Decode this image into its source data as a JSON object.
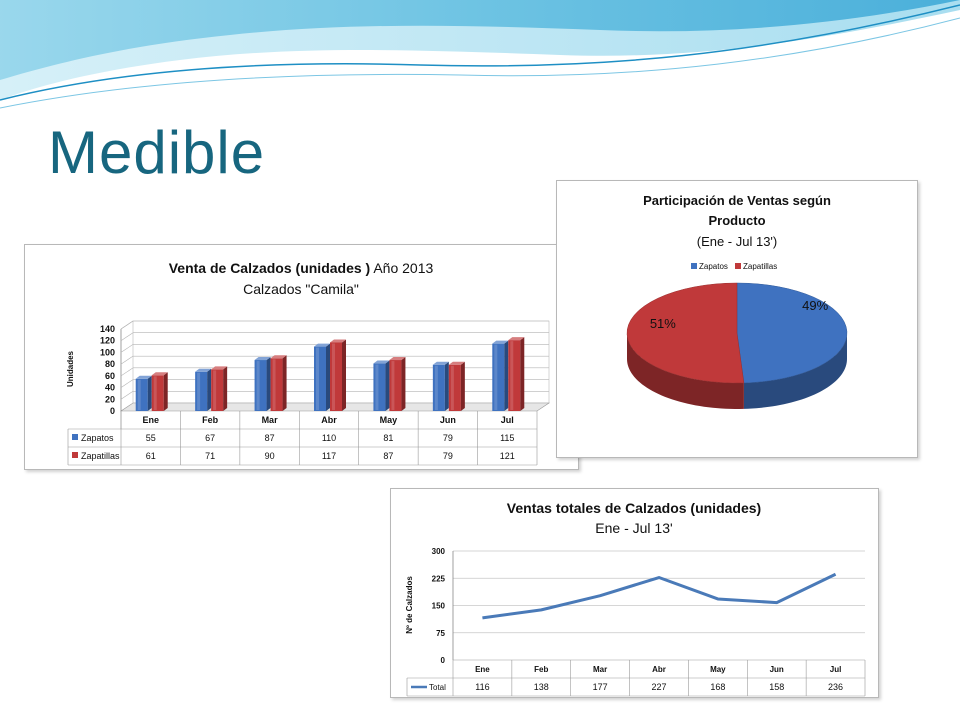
{
  "slide": {
    "title": "Medible"
  },
  "colors": {
    "title": "#17667f",
    "zapatos": "#3f72c0",
    "zapatillas": "#c0393a",
    "line": "#4a7ab8",
    "grid": "#c8c8c8"
  },
  "chart_data": [
    {
      "type": "bar",
      "title_bold": "Venta de Calzados  (unidades )",
      "title_rest": " Año 2013",
      "subtitle": "Calzados \"Camila\"",
      "ylabel": "Unidades",
      "xlabel": "",
      "ylim": [
        0,
        140
      ],
      "yticks": [
        0,
        20,
        40,
        60,
        80,
        100,
        120,
        140
      ],
      "categories": [
        "Ene",
        "Feb",
        "Mar",
        "Abr",
        "May",
        "Jun",
        "Jul"
      ],
      "series": [
        {
          "name": "Zapatos",
          "values": [
            55,
            67,
            87,
            110,
            81,
            79,
            115
          ],
          "color": "#3f72c0"
        },
        {
          "name": "Zapatillas",
          "values": [
            61,
            71,
            90,
            117,
            87,
            79,
            121
          ],
          "color": "#c0393a"
        }
      ],
      "grid": true,
      "legend": "data-table"
    },
    {
      "type": "pie",
      "title_line1": "Participación  de Ventas según",
      "title_line2": "Producto",
      "subtitle": "(Ene - Jul 13')",
      "slices": [
        {
          "name": "Zapatos",
          "value": 49,
          "label": "49%",
          "color": "#3f72c0"
        },
        {
          "name": "Zapatillas",
          "value": 51,
          "label": "51%",
          "color": "#c0393a"
        }
      ],
      "legend": "top"
    },
    {
      "type": "line",
      "title": "Ventas totales de Calzados (unidades)",
      "subtitle": "Ene - Jul 13'",
      "ylabel": "Nº de Calzados",
      "xlabel": "",
      "ylim": [
        0,
        300
      ],
      "yticks": [
        0,
        75,
        150,
        225,
        300
      ],
      "categories": [
        "Ene",
        "Feb",
        "Mar",
        "Abr",
        "May",
        "Jun",
        "Jul"
      ],
      "series": [
        {
          "name": "Total",
          "values": [
            116,
            138,
            177,
            227,
            168,
            158,
            236
          ],
          "color": "#4a7ab8"
        }
      ],
      "grid": true,
      "legend": "data-table"
    }
  ]
}
